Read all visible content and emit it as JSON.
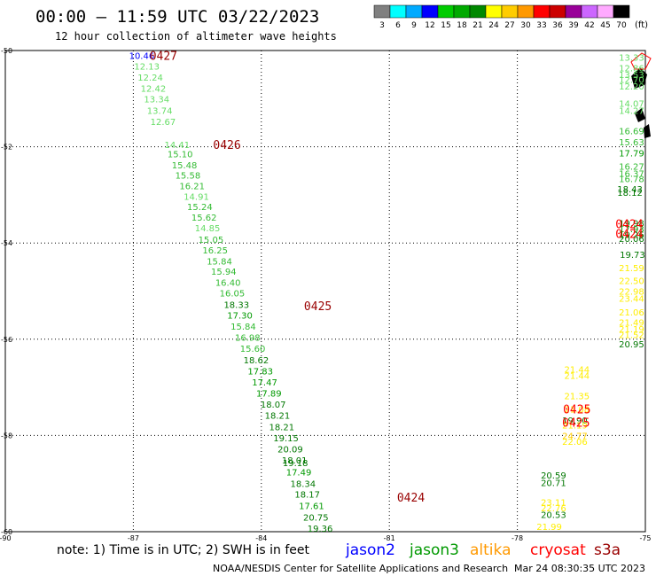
{
  "header": {
    "title": "00:00 — 11:59 UTC 03/22/2023",
    "subtitle": "12 hour collection of altimeter wave heights",
    "unit": "(ft)"
  },
  "footer": {
    "note": "note: 1) Time is in UTC; 2) SWH is in feet",
    "credit": "NOAA/NESDIS Center for Satellite Applications and Research",
    "generated": "Mar 24 08:30:35 UTC 2023"
  },
  "legend": {
    "satellites": [
      {
        "name": "jason2",
        "color": "#0000ff"
      },
      {
        "name": "jason3",
        "color": "#009900"
      },
      {
        "name": "altika",
        "color": "#ff9900"
      },
      {
        "name": "cryosat",
        "color": "#ff0000"
      },
      {
        "name": "s3a",
        "color": "#990000"
      }
    ],
    "scale": [
      {
        "label": "3",
        "color": "#808080"
      },
      {
        "label": "6",
        "color": "#00ffff"
      },
      {
        "label": "9",
        "color": "#00aaff"
      },
      {
        "label": "12",
        "color": "#0000ff"
      },
      {
        "label": "15",
        "color": "#00cc00"
      },
      {
        "label": "18",
        "color": "#00aa00"
      },
      {
        "label": "21",
        "color": "#008800"
      },
      {
        "label": "24",
        "color": "#ffff00"
      },
      {
        "label": "27",
        "color": "#ffcc00"
      },
      {
        "label": "30",
        "color": "#ff9900"
      },
      {
        "label": "33",
        "color": "#ff0000"
      },
      {
        "label": "36",
        "color": "#cc0000"
      },
      {
        "label": "39",
        "color": "#990099"
      },
      {
        "label": "42",
        "color": "#cc66ff"
      },
      {
        "label": "45",
        "color": "#ffaaff"
      },
      {
        "label": "70",
        "color": "#000000"
      }
    ]
  },
  "chart_data": {
    "type": "scatter",
    "title": "00:00 — 11:59 UTC 03/22/2023",
    "xlim": [
      -90,
      -75
    ],
    "ylim": [
      -60,
      -50
    ],
    "x_ticks": [
      -90,
      -87,
      -84,
      -81,
      -78,
      -75
    ],
    "y_ticks": [
      -50,
      -52,
      -54,
      -56,
      -58,
      -60
    ],
    "grid": true,
    "track_labels": [
      {
        "text": "0427",
        "lon": -86.62,
        "lat": -50.1,
        "color": "#990000"
      },
      {
        "text": "0426",
        "lon": -85.13,
        "lat": -51.95,
        "color": "#990000"
      },
      {
        "text": "0425",
        "lon": -83.0,
        "lat": -55.3,
        "color": "#990000"
      },
      {
        "text": "0424",
        "lon": -80.82,
        "lat": -59.28,
        "color": "#990000"
      },
      {
        "text": "0424",
        "lon": -75.7,
        "lat": -53.6,
        "color": "#ff0000"
      },
      {
        "text": "0424",
        "lon": -75.7,
        "lat": -53.8,
        "color": "#ff0000"
      },
      {
        "text": "0425",
        "lon": -76.93,
        "lat": -57.45,
        "color": "#ff0000"
      },
      {
        "text": "0425",
        "lon": -76.95,
        "lat": -57.73,
        "color": "#ff0000"
      }
    ],
    "series": [
      {
        "name": "jason3",
        "points": [
          {
            "lon": -87.1,
            "lat": -50.1,
            "swh": 10.46,
            "color": "#0000ff"
          },
          {
            "lon": -86.98,
            "lat": -50.32,
            "swh": 12.13,
            "color": "#66dd66"
          },
          {
            "lon": -86.9,
            "lat": -50.55,
            "swh": 12.24,
            "color": "#66dd66"
          },
          {
            "lon": -86.83,
            "lat": -50.78,
            "swh": 12.42,
            "color": "#66dd66"
          },
          {
            "lon": -86.75,
            "lat": -51.0,
            "swh": 13.34,
            "color": "#66dd66"
          },
          {
            "lon": -86.68,
            "lat": -51.24,
            "swh": 13.74,
            "color": "#66dd66"
          },
          {
            "lon": -86.6,
            "lat": -51.47,
            "swh": 12.67,
            "color": "#66dd66"
          },
          {
            "lon": -86.27,
            "lat": -51.95,
            "swh": 14.41,
            "color": "#66dd66"
          },
          {
            "lon": -86.2,
            "lat": -52.15,
            "swh": 15.1,
            "color": "#33bb33"
          },
          {
            "lon": -86.1,
            "lat": -52.38,
            "swh": 15.48,
            "color": "#33bb33"
          },
          {
            "lon": -86.02,
            "lat": -52.59,
            "swh": 15.58,
            "color": "#33bb33"
          },
          {
            "lon": -85.92,
            "lat": -52.81,
            "swh": 16.21,
            "color": "#33bb33"
          },
          {
            "lon": -85.82,
            "lat": -53.03,
            "swh": 14.91,
            "color": "#66dd66"
          },
          {
            "lon": -85.74,
            "lat": -53.24,
            "swh": 15.24,
            "color": "#33bb33"
          },
          {
            "lon": -85.64,
            "lat": -53.46,
            "swh": 15.62,
            "color": "#33bb33"
          },
          {
            "lon": -85.56,
            "lat": -53.68,
            "swh": 14.85,
            "color": "#66dd66"
          },
          {
            "lon": -85.48,
            "lat": -53.92,
            "swh": 15.05,
            "color": "#33bb33"
          },
          {
            "lon": -85.38,
            "lat": -54.14,
            "swh": 16.25,
            "color": "#33bb33"
          },
          {
            "lon": -85.28,
            "lat": -54.37,
            "swh": 15.84,
            "color": "#33bb33"
          },
          {
            "lon": -85.18,
            "lat": -54.59,
            "swh": 15.94,
            "color": "#33bb33"
          },
          {
            "lon": -85.08,
            "lat": -54.82,
            "swh": 16.4,
            "color": "#33bb33"
          },
          {
            "lon": -84.98,
            "lat": -55.04,
            "swh": 16.05,
            "color": "#33bb33"
          },
          {
            "lon": -84.88,
            "lat": -55.28,
            "swh": 18.33,
            "color": "#007700"
          },
          {
            "lon": -84.8,
            "lat": -55.5,
            "swh": 17.3,
            "color": "#009900"
          },
          {
            "lon": -84.72,
            "lat": -55.73,
            "swh": 15.84,
            "color": "#33bb33"
          },
          {
            "lon": -84.62,
            "lat": -55.96,
            "swh": 16.98,
            "color": "#33bb33"
          },
          {
            "lon": -84.5,
            "lat": -56.19,
            "swh": 15.6,
            "color": "#33bb33"
          },
          {
            "lon": -84.42,
            "lat": -56.43,
            "swh": 18.62,
            "color": "#007700"
          },
          {
            "lon": -84.32,
            "lat": -56.66,
            "swh": 17.83,
            "color": "#009900"
          },
          {
            "lon": -84.22,
            "lat": -56.89,
            "swh": 17.47,
            "color": "#009900"
          },
          {
            "lon": -84.12,
            "lat": -57.12,
            "swh": 17.89,
            "color": "#009900"
          },
          {
            "lon": -84.02,
            "lat": -57.35,
            "swh": 18.07,
            "color": "#007700"
          },
          {
            "lon": -83.92,
            "lat": -57.58,
            "swh": 18.21,
            "color": "#007700"
          },
          {
            "lon": -83.82,
            "lat": -57.82,
            "swh": 18.21,
            "color": "#007700"
          },
          {
            "lon": -83.72,
            "lat": -58.05,
            "swh": 19.15,
            "color": "#007700"
          },
          {
            "lon": -83.62,
            "lat": -58.28,
            "swh": 20.09,
            "color": "#007700"
          },
          {
            "lon": -83.52,
            "lat": -58.51,
            "swh": 18.01,
            "color": "#007700"
          },
          {
            "lon": -83.5,
            "lat": -58.56,
            "swh": 19.18,
            "color": "#007700"
          },
          {
            "lon": -83.42,
            "lat": -58.76,
            "swh": 17.49,
            "color": "#009900"
          },
          {
            "lon": -83.32,
            "lat": -59.0,
            "swh": 18.34,
            "color": "#007700"
          },
          {
            "lon": -83.22,
            "lat": -59.22,
            "swh": 18.17,
            "color": "#007700"
          },
          {
            "lon": -83.12,
            "lat": -59.46,
            "swh": 17.61,
            "color": "#009900"
          },
          {
            "lon": -83.02,
            "lat": -59.7,
            "swh": 20.75,
            "color": "#007700"
          },
          {
            "lon": -82.92,
            "lat": -59.93,
            "swh": 19.36,
            "color": "#007700"
          }
        ]
      },
      {
        "name": "cryosat",
        "points": [
          {
            "lon": -75.62,
            "lat": -50.14,
            "swh": 13.33,
            "color": "#66dd66"
          },
          {
            "lon": -75.62,
            "lat": -50.36,
            "swh": 12.86,
            "color": "#66dd66"
          },
          {
            "lon": -75.62,
            "lat": -50.5,
            "swh": 13.53,
            "color": "#66dd66"
          },
          {
            "lon": -75.62,
            "lat": -50.6,
            "swh": 12.7,
            "color": "#66dd66"
          },
          {
            "lon": -75.62,
            "lat": -50.74,
            "swh": 12.2,
            "color": "#66dd66"
          },
          {
            "lon": -75.62,
            "lat": -51.1,
            "swh": 14.07,
            "color": "#66dd66"
          },
          {
            "lon": -75.62,
            "lat": -51.24,
            "swh": 14.27,
            "color": "#66dd66"
          },
          {
            "lon": -75.62,
            "lat": -51.67,
            "swh": 16.69,
            "color": "#33bb33"
          },
          {
            "lon": -75.62,
            "lat": -51.9,
            "swh": 15.63,
            "color": "#33bb33"
          },
          {
            "lon": -75.62,
            "lat": -52.13,
            "swh": 17.79,
            "color": "#009900"
          },
          {
            "lon": -75.62,
            "lat": -52.4,
            "swh": 16.27,
            "color": "#33bb33"
          },
          {
            "lon": -75.62,
            "lat": -52.55,
            "swh": 16.37,
            "color": "#33bb33"
          },
          {
            "lon": -75.62,
            "lat": -52.66,
            "swh": 16.78,
            "color": "#33bb33"
          },
          {
            "lon": -75.66,
            "lat": -52.87,
            "swh": 18.43,
            "color": "#007700"
          },
          {
            "lon": -75.66,
            "lat": -52.95,
            "swh": 18.12,
            "color": "#007700"
          },
          {
            "lon": -75.62,
            "lat": -53.58,
            "swh": 19.98,
            "color": "#007700"
          },
          {
            "lon": -75.62,
            "lat": -53.7,
            "swh": 17.93,
            "color": "#009900"
          },
          {
            "lon": -75.62,
            "lat": -53.82,
            "swh": 19.26,
            "color": "#007700"
          },
          {
            "lon": -75.62,
            "lat": -53.9,
            "swh": 20.06,
            "color": "#007700"
          },
          {
            "lon": -75.6,
            "lat": -54.24,
            "swh": 19.73,
            "color": "#007700"
          },
          {
            "lon": -75.62,
            "lat": -54.51,
            "swh": 21.59,
            "color": "#ffee00"
          },
          {
            "lon": -75.62,
            "lat": -54.78,
            "swh": 22.5,
            "color": "#ffee00"
          },
          {
            "lon": -75.62,
            "lat": -55.0,
            "swh": 22.98,
            "color": "#ffee00"
          },
          {
            "lon": -75.62,
            "lat": -55.15,
            "swh": 23.44,
            "color": "#ffee00"
          },
          {
            "lon": -75.62,
            "lat": -55.43,
            "swh": 21.06,
            "color": "#ffee00"
          },
          {
            "lon": -75.62,
            "lat": -55.64,
            "swh": 21.49,
            "color": "#ffee00"
          },
          {
            "lon": -75.62,
            "lat": -55.78,
            "swh": 21.19,
            "color": "#ffee00"
          },
          {
            "lon": -75.62,
            "lat": -55.9,
            "swh": 21.52,
            "color": "#ffee00"
          },
          {
            "lon": -75.62,
            "lat": -56.1,
            "swh": 20.95,
            "color": "#007700"
          },
          {
            "lon": -76.9,
            "lat": -56.62,
            "swh": 21.44,
            "color": "#ffee00"
          },
          {
            "lon": -76.9,
            "lat": -56.75,
            "swh": 21.44,
            "color": "#ffee00"
          },
          {
            "lon": -76.9,
            "lat": -57.17,
            "swh": 21.35,
            "color": "#ffee00"
          },
          {
            "lon": -76.9,
            "lat": -57.45,
            "swh": 21.08,
            "color": "#ffee00"
          },
          {
            "lon": -76.95,
            "lat": -57.68,
            "swh": 19.9,
            "color": "#007700"
          },
          {
            "lon": -76.95,
            "lat": -57.78,
            "swh": 21.19,
            "color": "#ffee00"
          },
          {
            "lon": -76.95,
            "lat": -58.0,
            "swh": 24.77,
            "color": "#ffcc00"
          },
          {
            "lon": -76.95,
            "lat": -58.12,
            "swh": 22.06,
            "color": "#ffee00"
          },
          {
            "lon": -77.45,
            "lat": -58.82,
            "swh": 20.59,
            "color": "#007700"
          },
          {
            "lon": -77.45,
            "lat": -58.98,
            "swh": 20.71,
            "color": "#007700"
          },
          {
            "lon": -77.45,
            "lat": -59.38,
            "swh": 23.11,
            "color": "#ffee00"
          },
          {
            "lon": -77.45,
            "lat": -59.5,
            "swh": 22.76,
            "color": "#ffee00"
          },
          {
            "lon": -77.45,
            "lat": -59.64,
            "swh": 20.53,
            "color": "#007700"
          },
          {
            "lon": -77.55,
            "lat": -59.89,
            "swh": 21.99,
            "color": "#ffee00"
          }
        ]
      }
    ]
  }
}
